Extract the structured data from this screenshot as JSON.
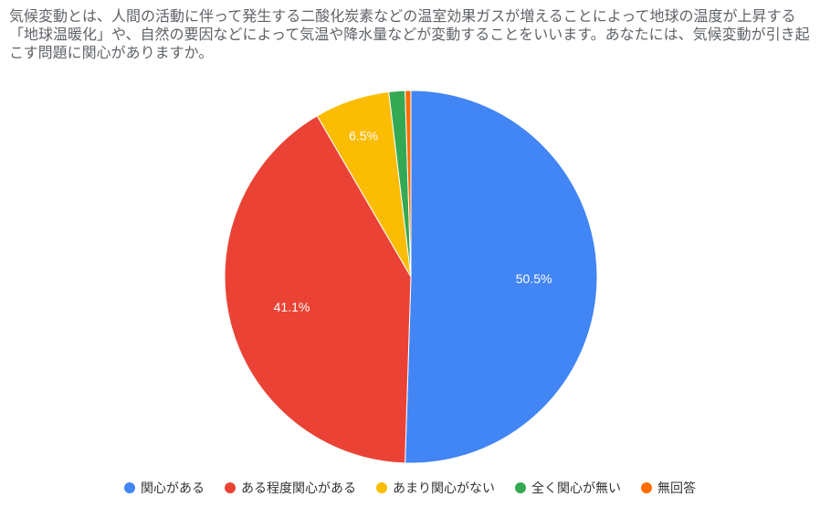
{
  "chart_data": {
    "type": "pie",
    "title": "気候変動とは、人間の活動に伴って発生する二酸化炭素などの温室効果ガスが増えることによって地球の温度が上昇する「地球温暖化」や、自然の要因などによって気温や降水量などが変動することをいいます。あなたには、気候変動が引き起こす問題に関心がありますか。",
    "slices": [
      {
        "label": "関心がある",
        "value": 50.5,
        "display": "50.5%",
        "color": "#4285f4"
      },
      {
        "label": "ある程度関心がある",
        "value": 41.1,
        "display": "41.1%",
        "color": "#ea4335"
      },
      {
        "label": "あまり関心がない",
        "value": 6.5,
        "display": "6.5%",
        "color": "#fbbc04"
      },
      {
        "label": "全く関心が無い",
        "value": 1.4,
        "display": "",
        "color": "#34a853"
      },
      {
        "label": "無回答",
        "value": 0.5,
        "display": "",
        "color": "#ff6d01"
      }
    ],
    "legend_position": "bottom",
    "start_angle": "top",
    "direction": "clockwise"
  }
}
